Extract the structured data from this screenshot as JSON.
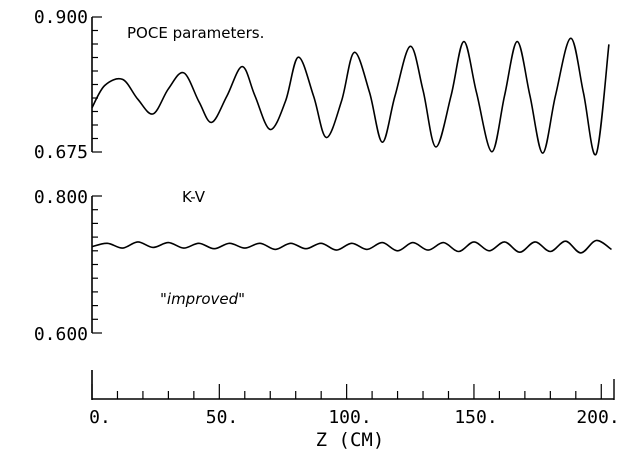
{
  "chart_data": {
    "type": "line",
    "title": "POCE parameters.",
    "xlabel": "Z (CM)",
    "xlim": [
      0,
      205
    ],
    "x_ticks": [
      "0.",
      "50.",
      "100.",
      "150.",
      "200."
    ],
    "x_minor_step": 10,
    "panels": [
      {
        "id": "top",
        "ylim": [
          0.675,
          0.9
        ],
        "y_tick_labels": [
          "0.900",
          "0.675"
        ],
        "series": [
          {
            "name": "K-V",
            "x": [
              0,
              5,
              12,
              18,
              24,
              30,
              36,
              42,
              47,
              53,
              59,
              64,
              70,
              76,
              81,
              87,
              92,
              98,
              103,
              109,
              114,
              119,
              125,
              130,
              135,
              141,
              146,
              151,
              157,
              162,
              167,
              172,
              177,
              182,
              188,
              193,
              198,
              203
            ],
            "y": [
              0.708,
              0.755,
              0.768,
              0.726,
              0.695,
              0.748,
              0.782,
              0.721,
              0.677,
              0.733,
              0.795,
              0.733,
              0.662,
              0.722,
              0.815,
              0.733,
              0.645,
              0.722,
              0.825,
              0.74,
              0.635,
              0.733,
              0.838,
              0.745,
              0.625,
              0.733,
              0.848,
              0.74,
              0.615,
              0.733,
              0.848,
              0.733,
              0.612,
              0.733,
              0.855,
              0.74,
              0.61,
              0.842
            ]
          }
        ]
      },
      {
        "id": "bottom",
        "ylim": [
          0.6,
          0.8
        ],
        "y_tick_labels": [
          "0.800",
          "0.600"
        ],
        "series": [
          {
            "name": "\"improved\"",
            "amplitude_note": "small oscillation around baseline",
            "x": [
              0,
              6,
              12,
              18,
              24,
              30,
              36,
              42,
              48,
              54,
              60,
              66,
              72,
              78,
              84,
              90,
              96,
              102,
              108,
              114,
              120,
              126,
              132,
              138,
              144,
              150,
              156,
              162,
              168,
              174,
              180,
              186,
              192,
              198,
              204
            ],
            "y": [
              0.726,
              0.731,
              0.724,
              0.733,
              0.725,
              0.732,
              0.724,
              0.731,
              0.723,
              0.731,
              0.724,
              0.731,
              0.722,
              0.731,
              0.723,
              0.731,
              0.721,
              0.731,
              0.722,
              0.732,
              0.72,
              0.732,
              0.721,
              0.732,
              0.719,
              0.733,
              0.72,
              0.733,
              0.718,
              0.733,
              0.719,
              0.734,
              0.717,
              0.735,
              0.722
            ]
          }
        ]
      }
    ],
    "annotations": [
      "K-V",
      "\"improved\""
    ],
    "grid": false,
    "legend": "none"
  }
}
